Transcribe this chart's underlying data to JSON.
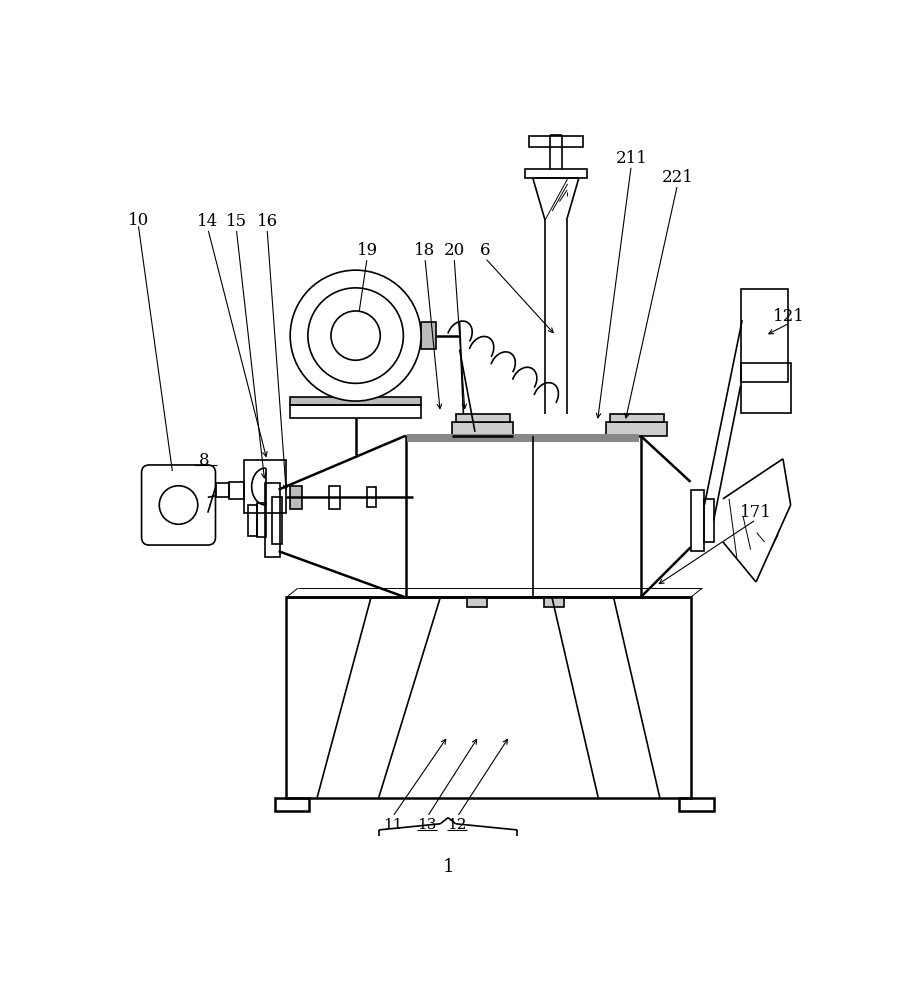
{
  "bg_color": "#ffffff",
  "lc": "#000000",
  "lw": 1.2,
  "lw_thick": 1.8,
  "lw_thin": 0.7
}
